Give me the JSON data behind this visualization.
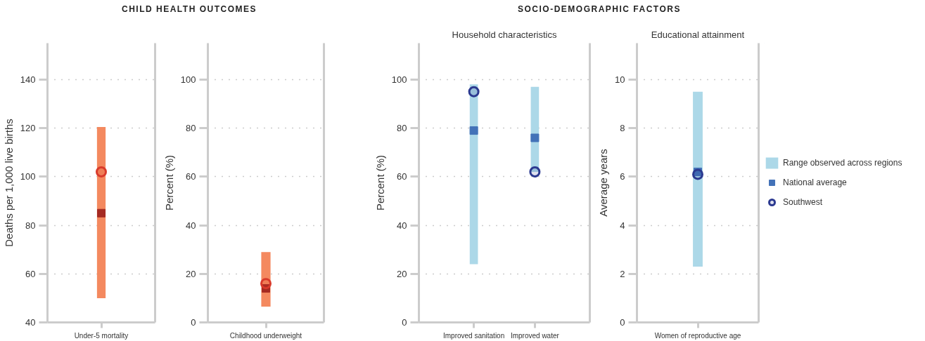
{
  "chart_data": [
    {
      "type": "bar",
      "title": "CHILD HEALTH OUTCOMES",
      "ylabel": "Deaths per 1,000 live births",
      "categories": [
        "Under-5 mortality"
      ],
      "ylim": [
        40,
        155
      ],
      "yticks": [
        40,
        60,
        80,
        100,
        120,
        140
      ],
      "grid": "y",
      "series": [
        {
          "color": "#f4895f",
          "base": [
            50
          ],
          "values": [
            70.5
          ]
        },
        {
          "type": "scatter",
          "marker": "square",
          "color": "#a52a22",
          "values": [
            85
          ]
        },
        {
          "type": "scatter",
          "marker": "circle",
          "color": "#d93a2b",
          "values": [
            102
          ]
        }
      ]
    },
    {
      "type": "bar",
      "ylabel": "Percent (%)",
      "categories": [
        "Childhood underweight"
      ],
      "ylim": [
        0,
        115
      ],
      "yticks": [
        0,
        20,
        40,
        60,
        80,
        100
      ],
      "grid": "y",
      "series": [
        {
          "color": "#f4895f",
          "base": [
            6.5
          ],
          "values": [
            22.5
          ]
        },
        {
          "type": "scatter",
          "marker": "square",
          "color": "#a52a22",
          "values": [
            14
          ]
        },
        {
          "type": "scatter",
          "marker": "circle",
          "color": "#d93a2b",
          "values": [
            16
          ]
        }
      ]
    },
    {
      "type": "bar",
      "title": "SOCIO-DEMOGRAPHIC FACTORS",
      "subtitle": "Household characteristics",
      "ylabel": "Percent (%)",
      "categories": [
        "Improved sanitation",
        "Improved water"
      ],
      "ylim": [
        0,
        115
      ],
      "yticks": [
        0,
        20,
        40,
        60,
        80,
        100
      ],
      "grid": "y",
      "series": [
        {
          "color": "#acd8e8",
          "base": [
            24,
            62
          ],
          "values": [
            74,
            35
          ]
        },
        {
          "type": "scatter",
          "marker": "square",
          "color": "#4372b8",
          "values": [
            79,
            76
          ]
        },
        {
          "type": "scatter",
          "marker": "circle",
          "color": "#2b3990",
          "values": [
            95,
            62
          ]
        }
      ]
    },
    {
      "type": "bar",
      "subtitle": "Educational attainment",
      "ylabel": "Average years",
      "categories": [
        "Women of reproductive age"
      ],
      "ylim": [
        0,
        11.5
      ],
      "yticks": [
        0,
        2,
        4,
        6,
        8,
        10
      ],
      "grid": "y",
      "legend": "right",
      "series": [
        {
          "name": "Range observed across regions",
          "color": "#acd8e8",
          "base": [
            2.3
          ],
          "values": [
            7.2
          ]
        },
        {
          "type": "scatter",
          "name": "National average",
          "marker": "square",
          "color": "#4372b8",
          "values": [
            6.2
          ]
        },
        {
          "type": "scatter",
          "name": "Southwest",
          "marker": "circle",
          "color": "#2b3990",
          "values": [
            6.1
          ]
        }
      ]
    }
  ]
}
